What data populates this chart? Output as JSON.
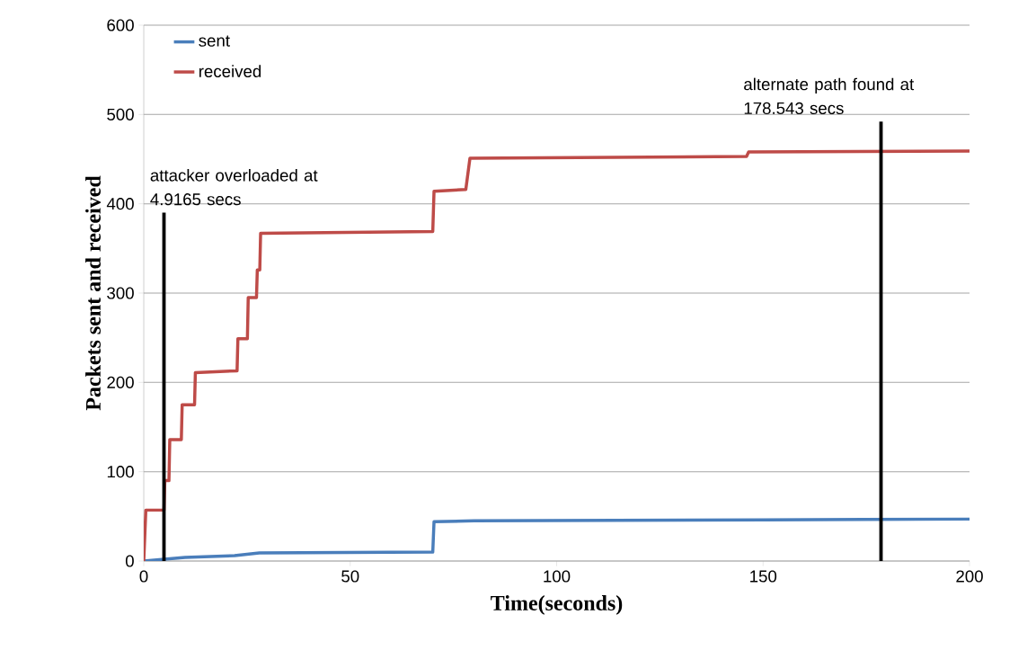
{
  "chart_data": {
    "type": "line",
    "xlabel": "Time(seconds)",
    "ylabel": "Packets sent and received",
    "xlim": [
      0,
      200
    ],
    "ylim": [
      0,
      600
    ],
    "xticks": [
      0,
      50,
      100,
      150,
      200
    ],
    "yticks": [
      0,
      100,
      200,
      300,
      400,
      500,
      600
    ],
    "grid": "y",
    "legend": "top left",
    "marker": "none",
    "line_style": "solid",
    "series": [
      {
        "name": "sent",
        "color": "#4a7ebb",
        "x": [
          0,
          5,
          10,
          22,
          28,
          70,
          70.3,
          80,
          150,
          200
        ],
        "values": [
          0,
          2,
          4,
          6,
          9,
          10,
          44,
          45,
          46,
          47
        ]
      },
      {
        "name": "received",
        "color": "#be4b48",
        "x": [
          0,
          0.5,
          4.9,
          5.1,
          6.1,
          6.3,
          9.1,
          9.3,
          12.3,
          12.5,
          22.6,
          22.8,
          25.1,
          25.3,
          27.3,
          27.5,
          28.1,
          28.3,
          70,
          70.3,
          78,
          79,
          146,
          146.5,
          200
        ],
        "values": [
          0,
          57,
          57,
          90,
          90,
          136,
          136,
          175,
          175,
          211,
          213,
          249,
          249,
          295,
          295,
          326,
          326,
          367,
          369,
          414,
          416,
          451,
          453,
          458,
          459
        ]
      }
    ],
    "ref_lines": [
      {
        "axis": "x",
        "value": 4.9165,
        "label": "attacker overloaded at 4.9165 secs",
        "color": "#000000"
      },
      {
        "axis": "x",
        "value": 178.543,
        "label": "alternate path found at 178.543 secs",
        "color": "#000000"
      }
    ]
  }
}
